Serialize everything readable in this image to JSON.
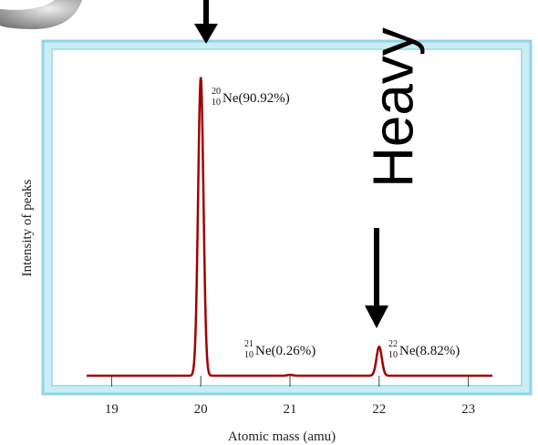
{
  "chart_data": {
    "type": "spectrum",
    "x_label": "Atomic mass (amu)",
    "y_label": "Intensity of peaks",
    "xlim": [
      18.72,
      23.27
    ],
    "xticks": [
      19,
      20,
      21,
      22,
      23
    ],
    "ylim": [
      0,
      100
    ],
    "color": "#a00000",
    "x": [
      20,
      21,
      22
    ],
    "values": [
      90.92,
      0.26,
      8.82
    ],
    "value_labels": [
      "(90.92%)",
      "(0.26%)",
      "(8.82%)"
    ],
    "mass_numbers": [
      "20",
      "21",
      "22"
    ],
    "atomic_numbers": [
      "10",
      "10",
      "10"
    ],
    "symbols": [
      "Ne",
      "Ne",
      "Ne"
    ]
  },
  "annotation": "Heavy"
}
